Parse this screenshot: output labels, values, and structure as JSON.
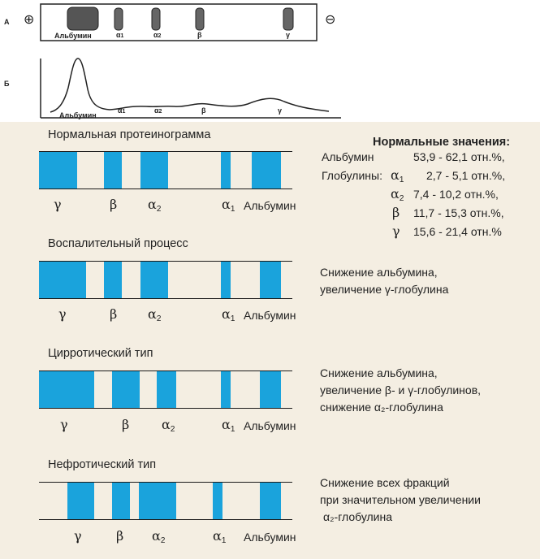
{
  "panel_a": {
    "letter": "А",
    "plus_sign": "⊕",
    "minus_sign": "⊖",
    "labels": [
      "Альбумин",
      "α",
      "α",
      "β",
      "γ"
    ],
    "subscripts": [
      "1",
      "2"
    ]
  },
  "panel_b": {
    "letter": "Б",
    "labels": [
      "Альбумин",
      "α",
      "α",
      "β",
      "γ"
    ],
    "subscripts": [
      "1",
      "2"
    ]
  },
  "normal_values": {
    "title": "Нормальные значения:",
    "rows": [
      {
        "name": "Альбумин",
        "greek": "",
        "sub": "",
        "value": "53,9 - 62,1 отн.%,"
      },
      {
        "name": "Глобулины:",
        "greek": "α",
        "sub": "1",
        "value": "2,7 - 5,1 отн.%,"
      },
      {
        "name": "",
        "greek": "α",
        "sub": "2",
        "value": "7,4 - 10,2 отн.%,"
      },
      {
        "name": "",
        "greek": "β",
        "sub": "",
        "value": "11,7 - 15,3 отн.%,"
      },
      {
        "name": "",
        "greek": "γ",
        "sub": "",
        "value": "15,6 - 21,4 отн.%"
      }
    ]
  },
  "patterns": [
    {
      "title": "Нормальная протеинограмма",
      "labels": {
        "gamma": "γ",
        "beta": "β",
        "alpha": "α",
        "sub1": "1",
        "sub2": "2",
        "albumin": "Альбумин"
      },
      "description": []
    },
    {
      "title": "Воспалительный процесс",
      "labels": {
        "gamma": "γ",
        "beta": "β",
        "alpha": "α",
        "sub1": "1",
        "sub2": "2",
        "albumin": "Альбумин"
      },
      "description": [
        "Снижение альбумина,",
        "увеличение γ-глобулина"
      ]
    },
    {
      "title": "Цирротический тип",
      "labels": {
        "gamma": "γ",
        "beta": "β",
        "alpha": "α",
        "sub1": "1",
        "sub2": "2",
        "albumin": "Альбумин"
      },
      "description": [
        "Снижение альбумина,",
        "увеличение β- и  γ-глобулинов,",
        "снижение α₂-глобулина"
      ]
    },
    {
      "title": "Нефротический тип",
      "labels": {
        "gamma": "γ",
        "beta": "β",
        "alpha": "α",
        "sub1": "1",
        "sub2": "2",
        "albumin": "Альбумин"
      },
      "description": [
        "Снижение  всех фракций",
        "при значительном увеличении",
        "α₂-глобулина"
      ]
    }
  ]
}
